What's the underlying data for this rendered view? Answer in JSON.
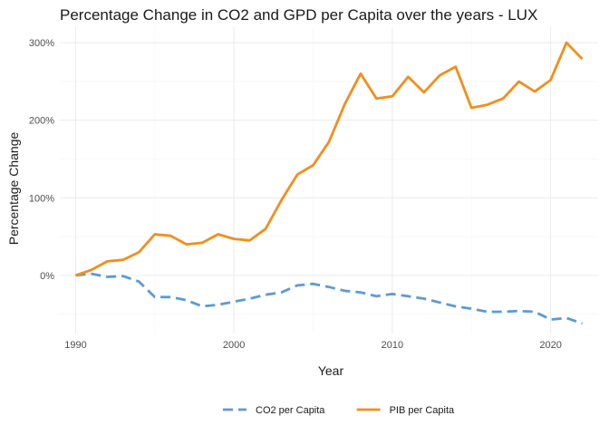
{
  "chart_data": {
    "type": "line",
    "title": "Percentage Change in CO2 and GPD per Capita over the years - LUX",
    "xlabel": "Year",
    "ylabel": "Percentage Change",
    "xlim": [
      1989,
      2023
    ],
    "ylim": [
      -75,
      320
    ],
    "x_ticks": [
      1990,
      2000,
      2010,
      2020
    ],
    "x_tick_labels": [
      "1990",
      "2000",
      "2010",
      "2020"
    ],
    "y_ticks": [
      0,
      100,
      200,
      300
    ],
    "y_tick_labels": [
      "0%",
      "100%",
      "200%",
      "300%"
    ],
    "grid": true,
    "legend_position": "bottom",
    "x": [
      1990,
      1991,
      1992,
      1993,
      1994,
      1995,
      1996,
      1997,
      1998,
      1999,
      2000,
      2001,
      2002,
      2003,
      2004,
      2005,
      2006,
      2007,
      2008,
      2009,
      2010,
      2011,
      2012,
      2013,
      2014,
      2015,
      2016,
      2017,
      2018,
      2019,
      2020,
      2021,
      2022
    ],
    "series": [
      {
        "name": "CO2 per Capita",
        "color": "#5b9bd5",
        "dash": "dashed",
        "values": [
          0,
          2,
          -2,
          -1,
          -8,
          -28,
          -28,
          -32,
          -40,
          -38,
          -34,
          -30,
          -25,
          -22,
          -13,
          -11,
          -15,
          -20,
          -22,
          -27,
          -24,
          -27,
          -30,
          -35,
          -40,
          -43,
          -47,
          -47,
          -46,
          -47,
          -57,
          -55,
          -62
        ]
      },
      {
        "name": "PIB per Capita",
        "color": "#f28e1c",
        "dash": "solid",
        "values": [
          0,
          7,
          18,
          20,
          30,
          53,
          51,
          40,
          42,
          53,
          47,
          45,
          60,
          97,
          130,
          142,
          172,
          221,
          260,
          228,
          231,
          256,
          236,
          258,
          269,
          216,
          220,
          228,
          250,
          237,
          252,
          300,
          279
        ]
      }
    ]
  }
}
